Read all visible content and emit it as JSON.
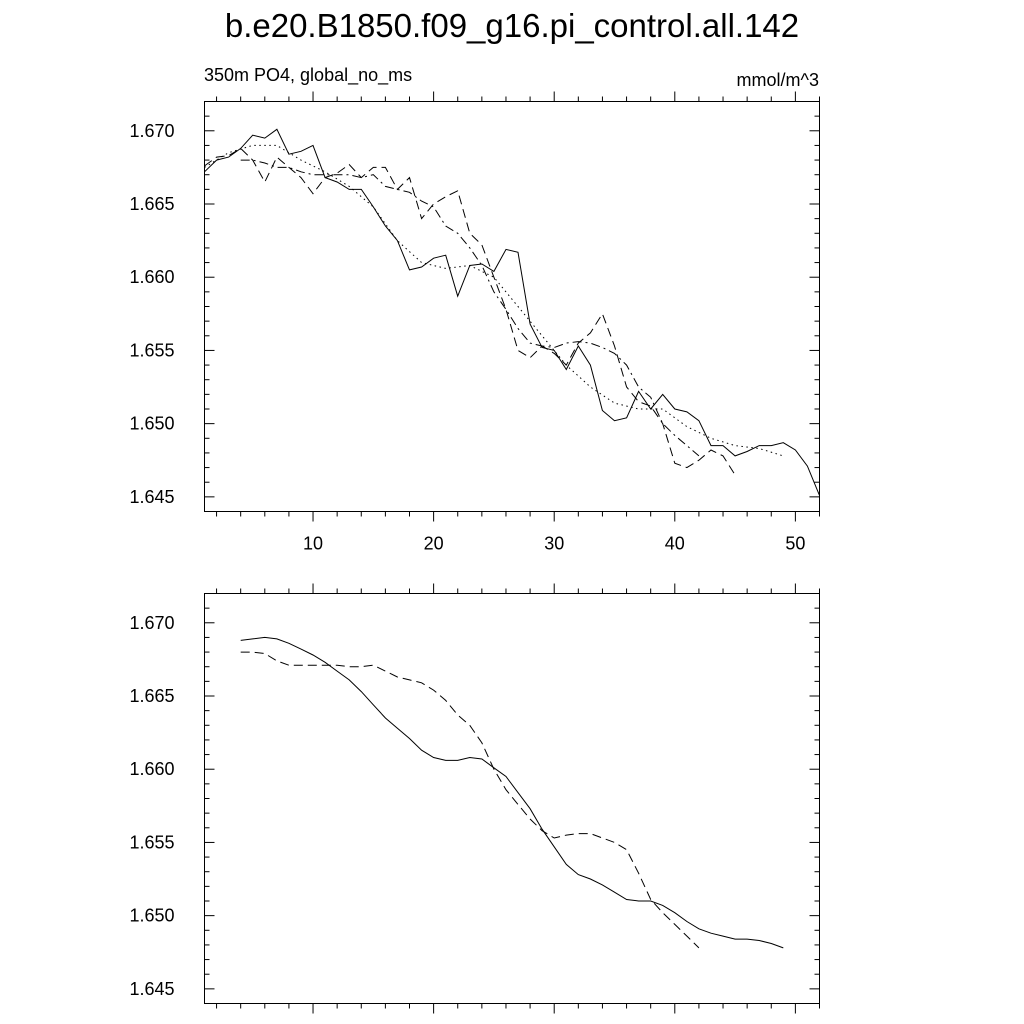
{
  "title": "b.e20.B1850.f09_g16.pi_control.all.142",
  "left_subtitle": "350m PO4, global_no_ms",
  "right_subtitle": "mmol/m^3",
  "chart_data": [
    {
      "type": "line",
      "panel": "top",
      "xlim": [
        1,
        52
      ],
      "ylim": [
        1.644,
        1.672
      ],
      "x_ticks": [
        10,
        20,
        30,
        40,
        50
      ],
      "x_tick_labels": [
        "10",
        "20",
        "30",
        "40",
        "50"
      ],
      "y_ticks": [
        1.645,
        1.65,
        1.655,
        1.66,
        1.665,
        1.67
      ],
      "y_tick_labels": [
        "1.645",
        "1.650",
        "1.655",
        "1.660",
        "1.665",
        "1.670"
      ],
      "grid": false,
      "series": [
        {
          "style": "solid",
          "x": [
            1,
            2,
            3,
            4,
            5,
            6,
            7,
            8,
            9,
            10,
            11,
            12,
            13,
            14,
            15,
            16,
            17,
            18,
            19,
            20,
            21,
            22,
            23,
            24,
            25,
            26,
            27,
            28,
            29,
            30,
            31,
            32,
            33,
            34,
            35,
            36,
            37,
            38,
            39,
            40,
            41,
            42,
            43,
            44,
            45,
            46,
            47,
            48,
            49,
            50,
            51,
            52
          ],
          "y": [
            1.6672,
            1.668,
            1.6682,
            1.6688,
            1.6697,
            1.6695,
            1.6701,
            1.6684,
            1.6686,
            1.669,
            1.6668,
            1.6665,
            1.666,
            1.666,
            1.6648,
            1.6635,
            1.6625,
            1.6605,
            1.6607,
            1.6613,
            1.6615,
            1.6587,
            1.6608,
            1.6609,
            1.6604,
            1.6619,
            1.6617,
            1.6568,
            1.6552,
            1.655,
            1.6537,
            1.6553,
            1.654,
            1.6509,
            1.6502,
            1.6504,
            1.6522,
            1.651,
            1.652,
            1.651,
            1.6508,
            1.6502,
            1.6485,
            1.6485,
            1.6478,
            1.6481,
            1.6485,
            1.6485,
            1.6487,
            1.6482,
            1.6471,
            1.6451
          ]
        },
        {
          "style": "dashed",
          "x": [
            1,
            2,
            3,
            4,
            5,
            6,
            7,
            8,
            9,
            10,
            11,
            12,
            13,
            14,
            15,
            16,
            17,
            18,
            19,
            20,
            21,
            22,
            23,
            24,
            25,
            26,
            27,
            28,
            29,
            30,
            31,
            32,
            33,
            34,
            35,
            36,
            37,
            38,
            39,
            40,
            41,
            42,
            43,
            44,
            45
          ],
          "y": [
            1.6676,
            1.6682,
            1.6683,
            1.6688,
            1.668,
            1.6665,
            1.6682,
            1.6675,
            1.6668,
            1.6657,
            1.6668,
            1.6671,
            1.6677,
            1.6668,
            1.6675,
            1.6675,
            1.666,
            1.6668,
            1.664,
            1.665,
            1.6655,
            1.6659,
            1.663,
            1.6622,
            1.66,
            1.6578,
            1.655,
            1.6545,
            1.6553,
            1.6548,
            1.654,
            1.6555,
            1.6562,
            1.6575,
            1.6553,
            1.6525,
            1.6515,
            1.6512,
            1.65,
            1.6473,
            1.647,
            1.6475,
            1.6482,
            1.6478,
            1.6465
          ]
        },
        {
          "style": "dash-dot",
          "x": [
            4,
            5,
            6,
            7,
            8,
            9,
            10,
            11,
            12,
            13,
            14,
            15,
            16,
            17,
            18,
            19,
            20,
            21,
            22,
            23,
            24,
            25,
            26,
            27,
            28,
            29,
            30,
            31,
            32,
            33,
            34,
            35,
            36,
            37,
            38,
            39,
            40,
            41,
            42
          ],
          "y": [
            1.668,
            1.668,
            1.6678,
            1.6675,
            1.6675,
            1.6672,
            1.667,
            1.667,
            1.667,
            1.667,
            1.6668,
            1.667,
            1.6662,
            1.666,
            1.6658,
            1.6652,
            1.6648,
            1.6635,
            1.663,
            1.662,
            1.6608,
            1.659,
            1.6578,
            1.6565,
            1.6555,
            1.6553,
            1.6552,
            1.6555,
            1.6556,
            1.6555,
            1.6552,
            1.6548,
            1.654,
            1.6525,
            1.6518,
            1.65,
            1.6492,
            1.6485,
            1.6478
          ]
        },
        {
          "style": "dotted",
          "x": [
            1,
            3,
            5,
            7,
            9,
            11,
            13,
            15,
            17,
            19,
            21,
            23,
            25,
            27,
            29,
            31,
            33,
            35,
            37,
            39,
            41,
            43,
            45,
            47,
            49
          ],
          "y": [
            1.6675,
            1.6685,
            1.669,
            1.669,
            1.668,
            1.6672,
            1.6662,
            1.6648,
            1.6625,
            1.661,
            1.6606,
            1.6608,
            1.66,
            1.658,
            1.656,
            1.654,
            1.6525,
            1.6514,
            1.651,
            1.651,
            1.6498,
            1.649,
            1.6485,
            1.6483,
            1.6478
          ]
        }
      ]
    },
    {
      "type": "line",
      "panel": "bottom",
      "xlim": [
        1,
        52
      ],
      "ylim": [
        1.644,
        1.672
      ],
      "x_ticks": [
        10,
        20,
        30,
        40,
        50
      ],
      "x_tick_labels": [],
      "y_ticks": [
        1.645,
        1.65,
        1.655,
        1.66,
        1.665,
        1.67
      ],
      "y_tick_labels": [
        "1.645",
        "1.650",
        "1.655",
        "1.660",
        "1.665",
        "1.670"
      ],
      "grid": false,
      "series": [
        {
          "style": "solid",
          "x": [
            4,
            5,
            6,
            7,
            8,
            9,
            10,
            11,
            12,
            13,
            14,
            15,
            16,
            17,
            18,
            19,
            20,
            21,
            22,
            23,
            24,
            25,
            26,
            27,
            28,
            29,
            30,
            31,
            32,
            33,
            34,
            35,
            36,
            37,
            38,
            39,
            40,
            41,
            42,
            43,
            44,
            45,
            46,
            47,
            48,
            49
          ],
          "y": [
            1.6688,
            1.6689,
            1.669,
            1.6689,
            1.6686,
            1.6682,
            1.6678,
            1.6673,
            1.6667,
            1.6661,
            1.6653,
            1.6644,
            1.6635,
            1.6628,
            1.6621,
            1.6613,
            1.6608,
            1.6606,
            1.6606,
            1.6608,
            1.6607,
            1.6601,
            1.6595,
            1.6584,
            1.6573,
            1.6559,
            1.6547,
            1.6535,
            1.6528,
            1.6525,
            1.6521,
            1.6516,
            1.6511,
            1.651,
            1.651,
            1.6507,
            1.6502,
            1.6496,
            1.6491,
            1.6488,
            1.6486,
            1.6484,
            1.6484,
            1.6483,
            1.6481,
            1.6478
          ]
        },
        {
          "style": "dashed",
          "x": [
            4,
            5,
            6,
            7,
            8,
            9,
            10,
            11,
            12,
            13,
            14,
            15,
            16,
            17,
            18,
            19,
            20,
            21,
            22,
            23,
            24,
            25,
            26,
            27,
            28,
            29,
            30,
            31,
            32,
            33,
            34,
            35,
            36,
            37,
            38,
            39,
            40,
            41,
            42
          ],
          "y": [
            1.668,
            1.668,
            1.6679,
            1.6674,
            1.6671,
            1.6671,
            1.6671,
            1.6671,
            1.6671,
            1.667,
            1.667,
            1.6671,
            1.6667,
            1.6663,
            1.6661,
            1.6659,
            1.6654,
            1.6647,
            1.6637,
            1.663,
            1.6618,
            1.66,
            1.6586,
            1.6576,
            1.6566,
            1.6558,
            1.6553,
            1.6555,
            1.6556,
            1.6556,
            1.6553,
            1.655,
            1.6545,
            1.6529,
            1.6511,
            1.6502,
            1.6494,
            1.6486,
            1.6478
          ]
        }
      ]
    }
  ]
}
